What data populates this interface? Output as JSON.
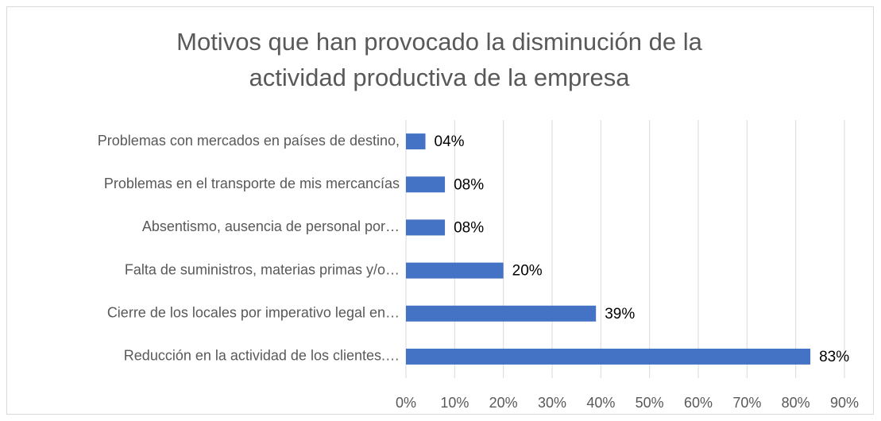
{
  "chart_data": {
    "type": "bar",
    "orientation": "horizontal",
    "title": "Motivos que han provocado la disminución de la actividad productiva de la empresa",
    "categories": [
      "Problemas con mercados en países de destino,",
      "Problemas en el transporte de mis mercancías",
      "Absentismo, ausencia de personal por…",
      "Falta de suministros, materias primas y/o…",
      "Cierre de los locales por imperativo legal en…",
      "Reducción en la actividad de los clientes.…"
    ],
    "values": [
      4,
      8,
      8,
      20,
      39,
      83
    ],
    "value_labels": [
      "04%",
      "08%",
      "08%",
      "20%",
      "39%",
      "83%"
    ],
    "color": "#4472c4",
    "xlim": [
      0,
      90
    ],
    "xticks": [
      {
        "value": 0,
        "label": "0%"
      },
      {
        "value": 10,
        "label": "10%"
      },
      {
        "value": 20,
        "label": "20%"
      },
      {
        "value": 30,
        "label": "30%"
      },
      {
        "value": 40,
        "label": "40%"
      },
      {
        "value": 50,
        "label": "50%"
      },
      {
        "value": 60,
        "label": "60%"
      },
      {
        "value": 70,
        "label": "70%"
      },
      {
        "value": 80,
        "label": "80%"
      },
      {
        "value": 90,
        "label": "90%"
      }
    ],
    "grid": true
  }
}
